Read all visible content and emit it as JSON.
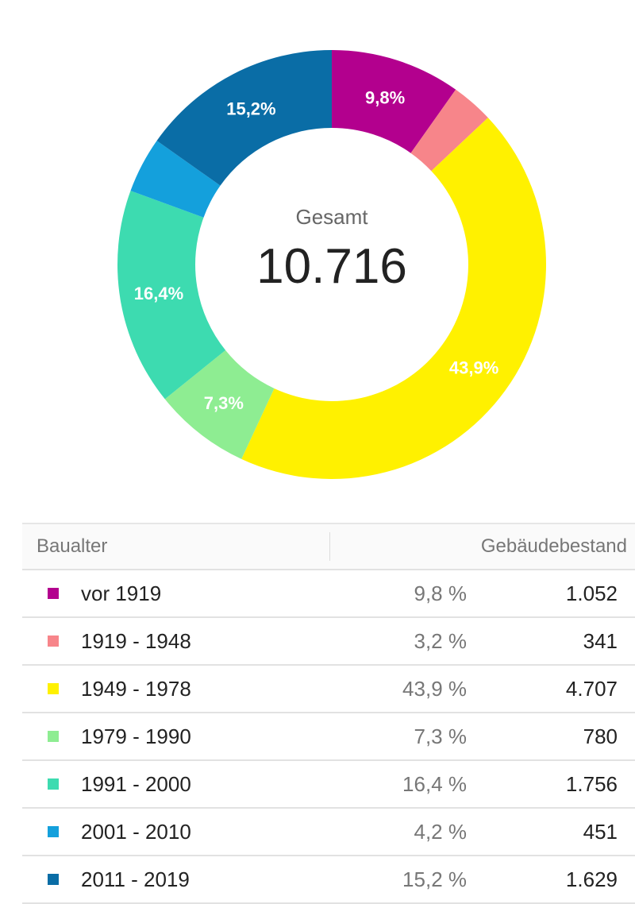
{
  "chart_data": {
    "type": "pie",
    "variant": "donut",
    "center_label": "Gesamt",
    "center_value": "10.716",
    "categories": [
      "vor 1919",
      "1919 - 1948",
      "1949 - 1978",
      "1979 - 1990",
      "1991 - 2000",
      "2001 - 2010",
      "2011 - 2019"
    ],
    "percent_labels": [
      "9,8 %",
      "3,2 %",
      "43,9 %",
      "7,3 %",
      "16,4 %",
      "4,2 %",
      "15,2 %"
    ],
    "slice_labels": [
      "9,8%",
      "",
      "43,9%",
      "7,3%",
      "16,4%",
      "",
      "15,2%"
    ],
    "values": [
      1052,
      341,
      4707,
      780,
      1756,
      451,
      1629
    ],
    "value_labels": [
      "1.052",
      "341",
      "4.707",
      "780",
      "1.756",
      "451",
      "1.629"
    ],
    "colors": [
      "#b3008e",
      "#f7858a",
      "#fff100",
      "#8eed92",
      "#3ddbb0",
      "#14a0dc",
      "#0a6da6"
    ]
  },
  "table": {
    "col1": "Baualter",
    "col2": "Gebäudebestand"
  }
}
